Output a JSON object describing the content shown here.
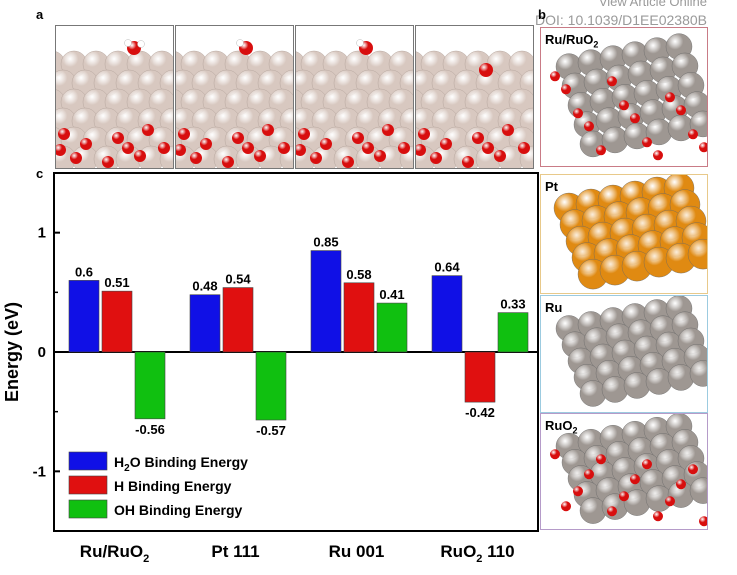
{
  "header": {
    "view_article": "View Article Online",
    "doi": "DOI: 10.1039/D1EE02380B"
  },
  "panel_letters": {
    "a": "a",
    "b": "b",
    "c": "c"
  },
  "side_panels": [
    {
      "label": "Ru/RuO2",
      "label_main": "Ru/RuO",
      "label_sub": "2",
      "border": "#c97b86"
    },
    {
      "label": "Pt",
      "label_main": "Pt",
      "label_sub": "",
      "border": "#e8c98a"
    },
    {
      "label": "Ru",
      "label_main": "Ru",
      "label_sub": "",
      "border": "#9ccbe0"
    },
    {
      "label": "RuO2",
      "label_main": "RuO",
      "label_sub": "2",
      "border": "#b59bc9"
    }
  ],
  "colors": {
    "h2o": "#1010e6",
    "h": "#e01010",
    "oh": "#10c010",
    "ru_atom": "#9e9792",
    "pt_atom": "#e08a12",
    "o_atom": "#d80e0e",
    "surface_atom": "#d8c8c0"
  },
  "chart_data": {
    "type": "bar",
    "categories": [
      "Ru/RuO2",
      "Pt 111",
      "Ru 001",
      "RuO2 110"
    ],
    "category_display": [
      {
        "main": "Ru/RuO",
        "sub": "2",
        "tail": ""
      },
      {
        "main": "Pt 111",
        "sub": "",
        "tail": ""
      },
      {
        "main": "Ru 001",
        "sub": "",
        "tail": ""
      },
      {
        "main": "RuO",
        "sub": "2",
        "tail": " 110"
      }
    ],
    "series": [
      {
        "name": "H2O Binding Energy",
        "name_main": "H",
        "name_sub": "2",
        "name_tail": "O Binding Energy",
        "color": "#1010e6",
        "values": [
          0.6,
          0.48,
          0.85,
          0.64
        ],
        "labels": [
          "0.6",
          "0.48",
          "0.85",
          "0.64"
        ]
      },
      {
        "name": "H Binding Energy",
        "name_main": "H Binding Energy",
        "name_sub": "",
        "name_tail": "",
        "color": "#e01010",
        "values": [
          0.51,
          0.54,
          0.58,
          -0.42
        ],
        "labels": [
          "0.51",
          "0.54",
          "0.58",
          "-0.42"
        ]
      },
      {
        "name": "OH Binding Energy",
        "name_main": "OH Binding Energy",
        "name_sub": "",
        "name_tail": "",
        "color": "#10c010",
        "values": [
          -0.56,
          -0.57,
          0.41,
          0.33
        ],
        "labels": [
          "-0.56",
          "-0.57",
          "0.41",
          "0.33"
        ]
      }
    ],
    "ylabel": "Energy (eV)",
    "ylim": [
      -1.5,
      1.5
    ],
    "yticks": [
      -1,
      0,
      1
    ],
    "ytick_labels": [
      "-1",
      "0",
      "1"
    ],
    "legend_position": "bottom-left",
    "grid": false
  }
}
